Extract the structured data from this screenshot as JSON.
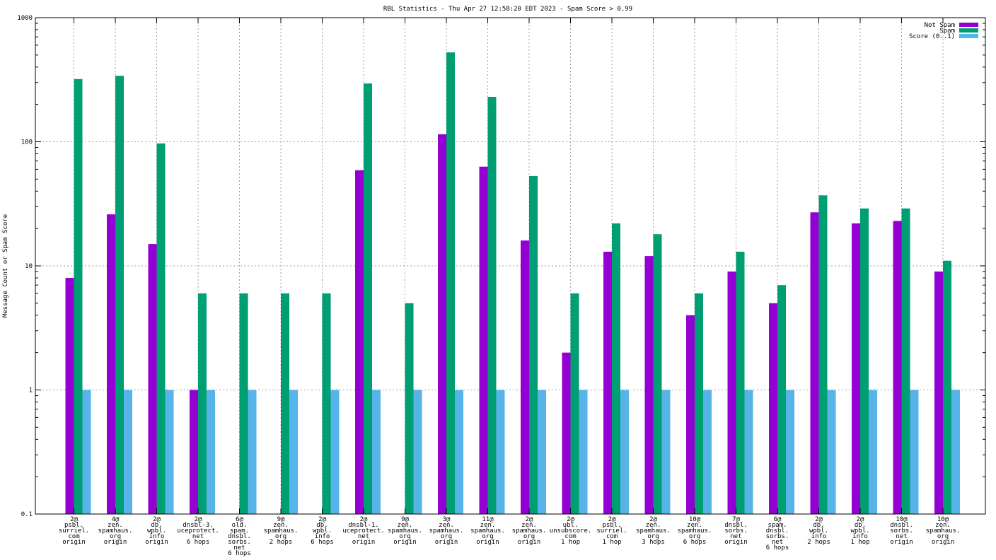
{
  "chart_data": {
    "type": "bar",
    "title": "RBL Statistics - Thu Apr 27 12:58:20 EDT 2023 - Spam Score > 0.99",
    "ylabel": "Message Count or Spam Score",
    "xlabel": "",
    "yscale": "log",
    "ylim": [
      0.1,
      1000
    ],
    "yticks": [
      "0.1",
      "1",
      "10",
      "100",
      "1000"
    ],
    "grid": true,
    "legend_position": "top-right",
    "categories": [
      [
        "2@",
        "psbl.",
        "surriel.",
        "com",
        "origin"
      ],
      [
        "4@",
        "zen.",
        "spamhaus.",
        "org",
        "origin"
      ],
      [
        "2@",
        "db.",
        "wpbl.",
        "info",
        "origin"
      ],
      [
        "2@",
        "dnsbl-3.",
        "uceprotect.",
        "net",
        "6 hops"
      ],
      [
        "6@",
        "old.",
        "spam.",
        "dnsbl.",
        "sorbs.",
        "net",
        "6 hops"
      ],
      [
        "9@",
        "zen.",
        "spamhaus.",
        "org",
        "2 hops"
      ],
      [
        "2@",
        "db.",
        "wpbl.",
        "info",
        "6 hops"
      ],
      [
        "2@",
        "dnsbl-1.",
        "uceprotect.",
        "net",
        "origin"
      ],
      [
        "9@",
        "zen.",
        "spamhaus.",
        "org",
        "origin"
      ],
      [
        "3@",
        "zen.",
        "spamhaus.",
        "org",
        "origin"
      ],
      [
        "11@",
        "zen.",
        "spamhaus.",
        "org",
        "origin"
      ],
      [
        "2@",
        "zen.",
        "spamhaus.",
        "org",
        "origin"
      ],
      [
        "2@",
        "ubl.",
        "unsubscore.",
        "com",
        "1 hop"
      ],
      [
        "2@",
        "psbl.",
        "surriel.",
        "com",
        "1 hop"
      ],
      [
        "2@",
        "zen.",
        "spamhaus.",
        "org",
        "3 hops"
      ],
      [
        "10@",
        "zen.",
        "spamhaus.",
        "org",
        "6 hops"
      ],
      [
        "7@",
        "dnsbl.",
        "sorbs.",
        "net",
        "origin"
      ],
      [
        "6@",
        "spam.",
        "dnsbl.",
        "sorbs.",
        "net",
        "6 hops"
      ],
      [
        "2@",
        "db.",
        "wpbl.",
        "info",
        "2 hops"
      ],
      [
        "2@",
        "db.",
        "wpbl.",
        "info",
        "1 hop"
      ],
      [
        "10@",
        "dnsbl.",
        "sorbs.",
        "net",
        "origin"
      ],
      [
        "10@",
        "zen.",
        "spamhaus.",
        "org",
        "origin"
      ]
    ],
    "series": [
      {
        "name": "Not Spam",
        "color": "#9400d3",
        "values": [
          8,
          26,
          15,
          1,
          null,
          null,
          null,
          59,
          null,
          115,
          63,
          16,
          2,
          13,
          12,
          4,
          9,
          5,
          27,
          22,
          23,
          9
        ]
      },
      {
        "name": "Spam",
        "color": "#009e73",
        "values": [
          320,
          340,
          97,
          6,
          6,
          6,
          6,
          295,
          5,
          525,
          230,
          53,
          6,
          22,
          18,
          6,
          13,
          7,
          37,
          29,
          29,
          11
        ]
      },
      {
        "name": "Score (0..1)",
        "color": "#56b4e9",
        "values": [
          1,
          1,
          1,
          1,
          1,
          1,
          1,
          1,
          1,
          1,
          1,
          1,
          1,
          1,
          1,
          1,
          1,
          1,
          1,
          1,
          1,
          1
        ]
      }
    ]
  }
}
